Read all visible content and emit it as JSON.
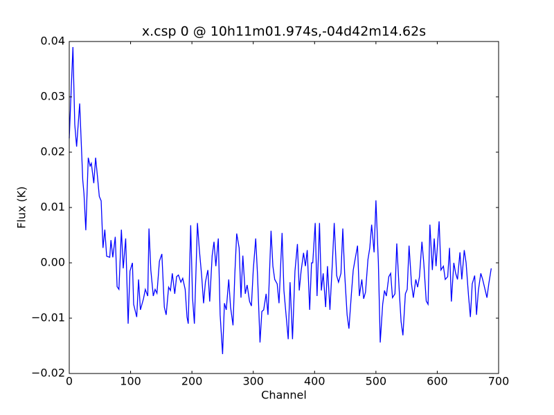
{
  "chart_data": {
    "type": "line",
    "title": "x.csp 0 @ 10h11m01.974s,-04d42m14.62s",
    "xlabel": "Channel",
    "ylabel": "Flux (K)",
    "xlim": [
      0,
      700
    ],
    "ylim": [
      -0.02,
      0.04
    ],
    "xticks": [
      0,
      100,
      200,
      300,
      400,
      500,
      600,
      700
    ],
    "yticks": [
      {
        "value": -0.02,
        "label": "−0.02"
      },
      {
        "value": -0.01,
        "label": "−0.01"
      },
      {
        "value": 0,
        "label": "0.00"
      },
      {
        "value": 0.01,
        "label": "0.01"
      },
      {
        "value": 0.02,
        "label": "0.02"
      },
      {
        "value": 0.03,
        "label": "0.03"
      },
      {
        "value": 0.04,
        "label": "0.04"
      }
    ],
    "grid": false,
    "series": [
      {
        "color": "#0000ff",
        "x": [
          0,
          6,
          9,
          12,
          17,
          22,
          24,
          27,
          31,
          34,
          36,
          40,
          43,
          46,
          49,
          52,
          55,
          58,
          61,
          66,
          68,
          71,
          75,
          78,
          81,
          85,
          88,
          92,
          96,
          99,
          103,
          105,
          110,
          113,
          116,
          121,
          124,
          128,
          130,
          133,
          137,
          140,
          143,
          147,
          151,
          155,
          158,
          162,
          165,
          168,
          172,
          175,
          178,
          182,
          185,
          189,
          192,
          194,
          198,
          201,
          204,
          209,
          212,
          216,
          219,
          222,
          226,
          229,
          233,
          236,
          239,
          243,
          246,
          250,
          253,
          256,
          260,
          263,
          267,
          270,
          273,
          277,
          280,
          283,
          287,
          290,
          294,
          297,
          300,
          304,
          307,
          311,
          314,
          317,
          321,
          324,
          329,
          332,
          335,
          339,
          342,
          347,
          350,
          353,
          357,
          360,
          364,
          368,
          372,
          375,
          378,
          382,
          385,
          388,
          392,
          395,
          397,
          401,
          404,
          408,
          411,
          414,
          418,
          421,
          425,
          429,
          432,
          436,
          439,
          443,
          446,
          449,
          453,
          456,
          460,
          463,
          466,
          470,
          473,
          477,
          480,
          483,
          487,
          490,
          493,
          497,
          500,
          504,
          507,
          511,
          514,
          517,
          521,
          524,
          527,
          531,
          534,
          538,
          541,
          544,
          548,
          551,
          554,
          558,
          561,
          565,
          568,
          571,
          575,
          578,
          582,
          585,
          588,
          592,
          595,
          598,
          603,
          606,
          610,
          613,
          617,
          620,
          623,
          627,
          630,
          633,
          637,
          640,
          644,
          647,
          651,
          654,
          657,
          661,
          664,
          667,
          671,
          674,
          677,
          681,
          684,
          688
        ],
        "values": [
          0.0225,
          0.039,
          0.025,
          0.021,
          0.0288,
          0.015,
          0.0125,
          0.0059,
          0.019,
          0.0175,
          0.018,
          0.0144,
          0.019,
          0.0156,
          0.012,
          0.0112,
          0.0027,
          0.006,
          0.0012,
          0.001,
          0.0041,
          0.001,
          0.0047,
          -0.0043,
          -0.0048,
          0.006,
          -0.001,
          0.0044,
          -0.011,
          -0.0015,
          0,
          -0.0075,
          -0.0098,
          -0.003,
          -0.0085,
          -0.0065,
          -0.0048,
          -0.006,
          0.0062,
          -0.0013,
          -0.006,
          -0.0048,
          -0.0055,
          0.0003,
          0.0016,
          -0.008,
          -0.0094,
          -0.0044,
          -0.005,
          -0.0019,
          -0.0056,
          -0.0025,
          -0.0022,
          -0.0035,
          -0.0028,
          -0.0048,
          -0.0098,
          -0.011,
          0.0068,
          -0.0063,
          -0.011,
          0.0072,
          0.0025,
          -0.0025,
          -0.0073,
          -0.0035,
          -0.0013,
          -0.007,
          0.0013,
          0.0038,
          -0.0006,
          0.0044,
          -0.0094,
          -0.0165,
          -0.0073,
          -0.0085,
          -0.003,
          -0.008,
          -0.0113,
          -0.0019,
          0.0053,
          0.0027,
          -0.0063,
          0.0013,
          -0.0056,
          -0.004,
          -0.007,
          -0.0078,
          -0.0013,
          0.0044,
          -0.0023,
          -0.0144,
          -0.0088,
          -0.0085,
          -0.0056,
          -0.0094,
          0.0058,
          -0.0006,
          -0.003,
          -0.0038,
          -0.0073,
          0.0054,
          -0.005,
          -0.0088,
          -0.0138,
          -0.0035,
          -0.0138,
          -0.0015,
          0.0034,
          -0.005,
          -0.0015,
          0.0018,
          -0.0006,
          0.0023,
          -0.0085,
          0,
          0,
          0.0072,
          -0.006,
          0.0072,
          -0.005,
          -0.0019,
          -0.008,
          -0.0006,
          -0.0085,
          0,
          0.0072,
          -0.0023,
          -0.0035,
          -0.0019,
          0.0062,
          -0.0019,
          -0.0094,
          -0.0119,
          -0.0056,
          -0.0013,
          0.0006,
          0.0031,
          -0.006,
          -0.003,
          -0.0065,
          -0.0053,
          0.0006,
          0.0027,
          0.0069,
          0.0019,
          0.0113,
          0,
          -0.0144,
          -0.0075,
          -0.005,
          -0.006,
          -0.0025,
          -0.0019,
          -0.0063,
          -0.0056,
          0.0035,
          -0.005,
          -0.0106,
          -0.0131,
          -0.0056,
          -0.0048,
          0.0031,
          -0.0038,
          -0.0063,
          -0.003,
          -0.0044,
          -0.0025,
          0.0038,
          0,
          -0.0069,
          -0.0075,
          0.0069,
          -0.0013,
          0.0044,
          -0.0006,
          0.0075,
          -0.0013,
          -0.0006,
          -0.003,
          -0.0025,
          0.0027,
          -0.007,
          0,
          -0.0019,
          -0.003,
          0.0019,
          -0.003,
          0.0023,
          0,
          -0.006,
          -0.0098,
          -0.0038,
          -0.0023,
          -0.0094,
          -0.005,
          -0.0019,
          -0.003,
          -0.0044,
          -0.0063,
          -0.0038,
          -0.001
        ]
      }
    ]
  }
}
